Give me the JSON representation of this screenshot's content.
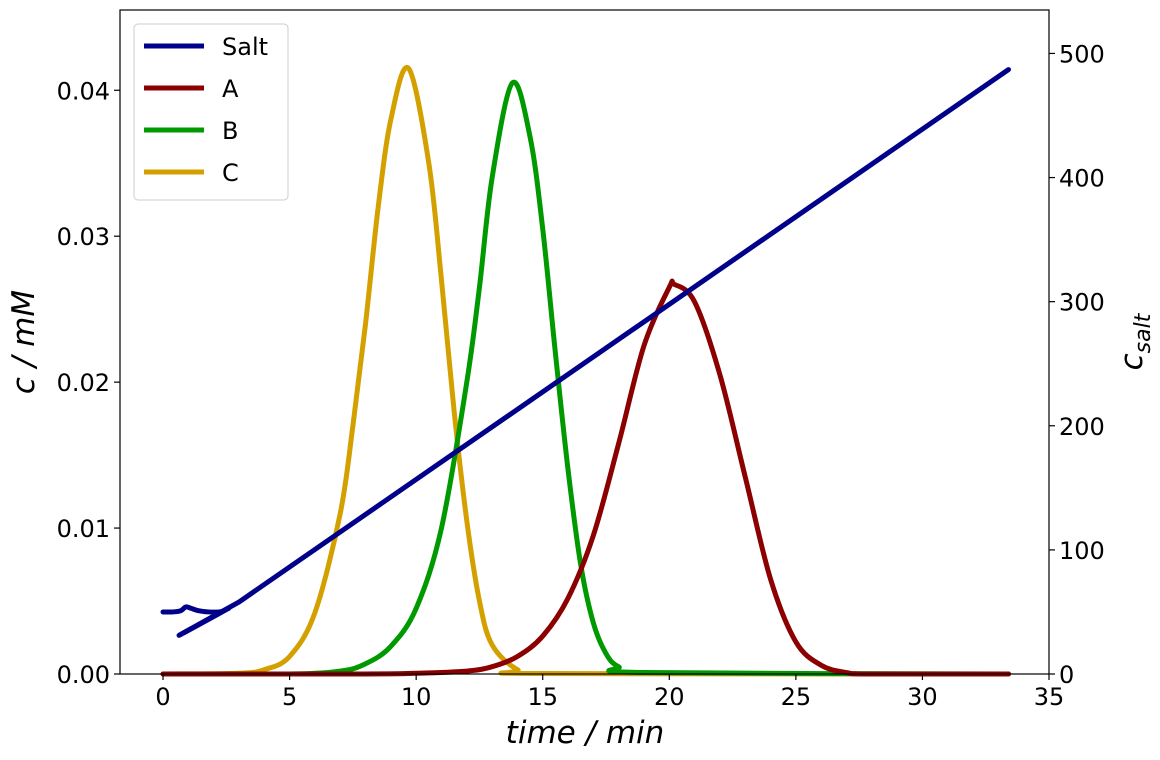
{
  "chart_data": {
    "type": "line",
    "xlabel": "time / min",
    "ylabel": "c / mM",
    "y2label_base": "c",
    "y2label_sub": "salt",
    "xlim": [
      -1.7,
      35
    ],
    "ylim": [
      0,
      0.0455
    ],
    "y2lim": [
      0,
      535
    ],
    "x_ticks": [
      0,
      5,
      10,
      15,
      20,
      25,
      30,
      35
    ],
    "x_tick_labels": [
      "0",
      "5",
      "10",
      "15",
      "20",
      "25",
      "30",
      "35"
    ],
    "y_ticks": [
      0.0,
      0.01,
      0.02,
      0.03,
      0.04
    ],
    "y_tick_labels": [
      "0.00",
      "0.01",
      "0.02",
      "0.03",
      "0.04"
    ],
    "y2_ticks": [
      0,
      100,
      200,
      300,
      400,
      500
    ],
    "y2_tick_labels": [
      "0",
      "100",
      "200",
      "300",
      "400",
      "500"
    ],
    "grid": false,
    "legend_position": "top-left",
    "series": [
      {
        "name": "Salt",
        "axis": "right",
        "color": "#00008b",
        "x": [
          0,
          0.4,
          0.7,
          0.9,
          1.1,
          1.4,
          1.8,
          2.2,
          2.4,
          2.6,
          3.0,
          33.4
        ],
        "y": [
          50,
          50,
          51,
          54,
          53,
          51,
          50,
          50,
          51,
          53,
          58,
          487
        ]
      },
      {
        "name": "A",
        "axis": "left",
        "color": "#8b0000",
        "x": [
          0,
          8,
          10,
          12,
          13,
          14,
          15,
          16,
          17,
          18,
          19,
          20,
          20.2,
          21,
          22,
          23,
          24,
          25,
          26,
          27,
          28,
          33.4
        ],
        "y": [
          0,
          0,
          5e-05,
          0.0002,
          0.0005,
          0.0012,
          0.0026,
          0.0052,
          0.0095,
          0.0158,
          0.0225,
          0.0265,
          0.0267,
          0.0255,
          0.0205,
          0.0135,
          0.0065,
          0.0022,
          0.0006,
          0.0001,
          0,
          0
        ]
      },
      {
        "name": "B",
        "axis": "left",
        "color": "#009900",
        "x": [
          0,
          5,
          7,
          8,
          9,
          10,
          11,
          12,
          12.5,
          13,
          13.8,
          14.5,
          15,
          15.5,
          16,
          16.5,
          17,
          17.5,
          18,
          19,
          33.4
        ],
        "y": [
          0,
          0,
          0.0002,
          0.0007,
          0.0019,
          0.0045,
          0.01,
          0.02,
          0.0265,
          0.034,
          0.0405,
          0.0368,
          0.0305,
          0.022,
          0.014,
          0.0075,
          0.0035,
          0.0014,
          0.0005,
          0.0001,
          0
        ]
      },
      {
        "name": "C",
        "axis": "left",
        "color": "#d4a000",
        "x": [
          0,
          3,
          4,
          5,
          6,
          7,
          7.5,
          8,
          8.5,
          9,
          9.7,
          10.5,
          11,
          11.5,
          12,
          12.5,
          13,
          14,
          15,
          33.4
        ],
        "y": [
          0,
          5e-05,
          0.0003,
          0.0012,
          0.0042,
          0.011,
          0.017,
          0.024,
          0.032,
          0.038,
          0.0415,
          0.035,
          0.027,
          0.018,
          0.0105,
          0.005,
          0.002,
          0.0003,
          3e-05,
          0
        ]
      }
    ]
  }
}
